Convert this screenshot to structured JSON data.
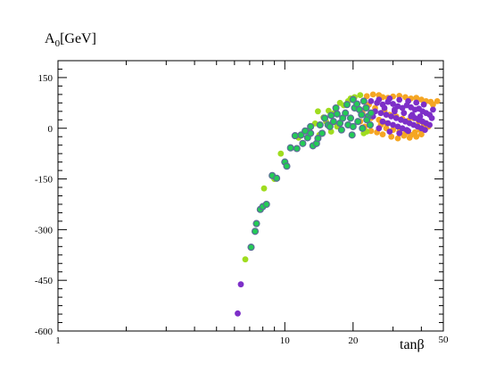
{
  "chart_data": {
    "type": "scatter",
    "title": "",
    "ylabel": "A",
    "ylabel_sub": "0",
    "ylabel_unit": "[GeV]",
    "xlabel": "tanβ",
    "x_scale": "log",
    "xlim": [
      1,
      50
    ],
    "ylim": [
      -600,
      200
    ],
    "grid": false,
    "x_ticks": [
      {
        "value": 1,
        "label": "1"
      },
      {
        "value": 10,
        "label": "10"
      },
      {
        "value": 20,
        "label": "20"
      },
      {
        "value": 50,
        "label": "50"
      }
    ],
    "y_ticks": [
      {
        "value": 150,
        "label": "150"
      },
      {
        "value": 0,
        "label": "0"
      },
      {
        "value": -150,
        "label": "-150"
      },
      {
        "value": -300,
        "label": "-300"
      },
      {
        "value": -450,
        "label": "-450"
      },
      {
        "value": -600,
        "label": "-600"
      }
    ],
    "series": [
      {
        "color": "#f5a623",
        "points": [
          [
            23,
            95
          ],
          [
            24.5,
            100
          ],
          [
            26,
            98
          ],
          [
            27,
            92
          ],
          [
            28.5,
            90
          ],
          [
            30,
            94
          ],
          [
            32,
            96
          ],
          [
            34,
            92
          ],
          [
            36,
            88
          ],
          [
            38,
            90
          ],
          [
            40,
            85
          ],
          [
            42,
            80
          ],
          [
            44,
            78
          ],
          [
            23.5,
            70
          ],
          [
            25,
            60
          ],
          [
            27.5,
            52
          ],
          [
            29,
            40
          ],
          [
            31,
            35
          ],
          [
            33,
            28
          ],
          [
            35,
            22
          ],
          [
            37,
            30
          ],
          [
            39,
            20
          ],
          [
            41,
            10
          ],
          [
            43,
            5
          ],
          [
            26.5,
            10
          ],
          [
            28,
            0
          ],
          [
            30,
            -5
          ],
          [
            32,
            -10
          ],
          [
            34,
            -15
          ],
          [
            36,
            -20
          ],
          [
            38,
            -25
          ],
          [
            40,
            -18
          ],
          [
            21.5,
            20
          ],
          [
            22.5,
            5
          ],
          [
            24,
            -8
          ],
          [
            25.5,
            -12
          ],
          [
            27,
            -18
          ],
          [
            29.5,
            -25
          ],
          [
            31.5,
            -30
          ],
          [
            33.5,
            -22
          ],
          [
            35.5,
            -28
          ],
          [
            37.5,
            -12
          ],
          [
            39.5,
            -5
          ],
          [
            42,
            15
          ],
          [
            45,
            70
          ],
          [
            47,
            80
          ],
          [
            22,
            45
          ],
          [
            24,
            30
          ],
          [
            26,
            25
          ],
          [
            28,
            15
          ]
        ]
      },
      {
        "color": "#7d2fc8",
        "points": [
          [
            6.2,
            -548
          ],
          [
            6.4,
            -462
          ],
          [
            24,
            80
          ],
          [
            25.5,
            75
          ],
          [
            27,
            70
          ],
          [
            28.5,
            78
          ],
          [
            30,
            72
          ],
          [
            31.5,
            65
          ],
          [
            33,
            60
          ],
          [
            34.5,
            68
          ],
          [
            36,
            62
          ],
          [
            37.5,
            55
          ],
          [
            39,
            58
          ],
          [
            40.5,
            50
          ],
          [
            42,
            45
          ],
          [
            43.5,
            40
          ],
          [
            25,
            50
          ],
          [
            26.5,
            45
          ],
          [
            28,
            40
          ],
          [
            29.5,
            35
          ],
          [
            31,
            30
          ],
          [
            32.5,
            25
          ],
          [
            34,
            20
          ],
          [
            35.5,
            15
          ],
          [
            37,
            10
          ],
          [
            38.5,
            5
          ],
          [
            40,
            0
          ],
          [
            41.5,
            -5
          ],
          [
            27,
            20
          ],
          [
            28.5,
            15
          ],
          [
            30,
            10
          ],
          [
            31.5,
            5
          ],
          [
            33,
            0
          ],
          [
            34.5,
            -5
          ],
          [
            36,
            35
          ],
          [
            37.5,
            30
          ],
          [
            39,
            25
          ],
          [
            40.5,
            20
          ],
          [
            42,
            15
          ],
          [
            43.5,
            10
          ],
          [
            44.5,
            30
          ],
          [
            45,
            55
          ],
          [
            26,
            85
          ],
          [
            29,
            88
          ],
          [
            32,
            84
          ],
          [
            35,
            80
          ],
          [
            38,
            76
          ],
          [
            41,
            70
          ],
          [
            23,
            60
          ],
          [
            24.5,
            35
          ],
          [
            26,
            0
          ],
          [
            29,
            -10
          ],
          [
            32,
            -15
          ],
          [
            35,
            -8
          ],
          [
            30.5,
            50
          ],
          [
            33.5,
            45
          ],
          [
            36.5,
            40
          ],
          [
            39.5,
            35
          ],
          [
            27.5,
            60
          ],
          [
            30.5,
            55
          ]
        ]
      },
      {
        "color": "#9fdc1f",
        "points": [
          [
            6.7,
            -388
          ],
          [
            8.1,
            -178
          ],
          [
            9.0,
            -150
          ],
          [
            9.6,
            -75
          ],
          [
            11.5,
            -28
          ],
          [
            12.8,
            -5
          ],
          [
            13.6,
            14
          ],
          [
            14.2,
            -20
          ],
          [
            14.8,
            32
          ],
          [
            15.6,
            52
          ],
          [
            16.5,
            45
          ],
          [
            17.5,
            75
          ],
          [
            18.2,
            68
          ],
          [
            19.5,
            88
          ],
          [
            20.3,
            92
          ],
          [
            21.5,
            98
          ],
          [
            19.0,
            80
          ],
          [
            20.8,
            70
          ],
          [
            16.0,
            -10
          ],
          [
            17.0,
            5
          ],
          [
            22.3,
            -15
          ],
          [
            23.0,
            -10
          ],
          [
            14.0,
            50
          ],
          [
            15.2,
            20
          ]
        ]
      },
      {
        "color": "#22cc55",
        "edge": "#5b6f95",
        "points": [
          [
            7.1,
            -352
          ],
          [
            7.4,
            -305
          ],
          [
            7.5,
            -282
          ],
          [
            7.8,
            -240
          ],
          [
            8.0,
            -232
          ],
          [
            8.3,
            -225
          ],
          [
            8.8,
            -140
          ],
          [
            9.2,
            -148
          ],
          [
            10.0,
            -100
          ],
          [
            10.2,
            -112
          ],
          [
            10.6,
            -58
          ],
          [
            11.1,
            -22
          ],
          [
            11.3,
            -60
          ],
          [
            11.8,
            -20
          ],
          [
            12.0,
            -45
          ],
          [
            12.3,
            -8
          ],
          [
            12.6,
            -28
          ],
          [
            13.0,
            5
          ],
          [
            13.3,
            -52
          ],
          [
            13.8,
            -45
          ],
          [
            14.3,
            10
          ],
          [
            14.6,
            -15
          ],
          [
            15.0,
            30
          ],
          [
            15.5,
            10
          ],
          [
            16.0,
            38
          ],
          [
            16.4,
            20
          ],
          [
            17.0,
            42
          ],
          [
            17.5,
            15
          ],
          [
            18.0,
            30
          ],
          [
            18.5,
            45
          ],
          [
            19.0,
            10
          ],
          [
            19.5,
            30
          ],
          [
            20.0,
            5
          ],
          [
            20.3,
            60
          ],
          [
            20.8,
            72
          ],
          [
            21.3,
            55
          ],
          [
            21.8,
            40
          ],
          [
            22.3,
            80
          ],
          [
            22.8,
            60
          ],
          [
            23.3,
            35
          ],
          [
            23.8,
            10
          ],
          [
            20.0,
            85
          ],
          [
            18.8,
            70
          ],
          [
            16.8,
            60
          ],
          [
            15.8,
            5
          ],
          [
            17.8,
            -5
          ],
          [
            19.8,
            -20
          ],
          [
            21.0,
            20
          ],
          [
            22.0,
            0
          ],
          [
            23.0,
            25
          ],
          [
            24.0,
            45
          ],
          [
            14.0,
            -30
          ],
          [
            13.0,
            -15
          ]
        ]
      }
    ]
  }
}
